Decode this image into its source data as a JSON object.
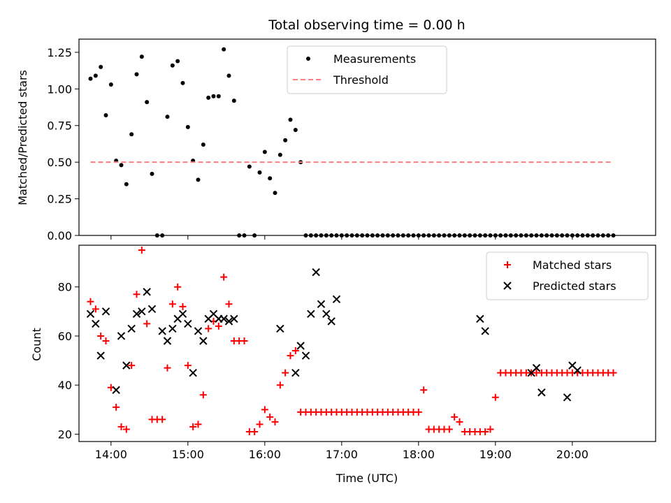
{
  "chart_data": [
    {
      "type": "scatter",
      "title": "Total observing time = 0.00 h",
      "xlabel": "",
      "ylabel": "Matched/Predicted stars",
      "ylim": [
        0,
        1.34
      ],
      "yticks": [
        "0.00",
        "0.25",
        "0.50",
        "0.75",
        "1.00",
        "1.25"
      ],
      "xlim": [
        "13:35",
        "21:05"
      ],
      "xticks": [
        "14:00",
        "15:00",
        "16:00",
        "17:00",
        "18:00",
        "19:00",
        "20:00"
      ],
      "legend": "upper-center",
      "series": [
        {
          "name": "Measurements",
          "color": "#000000",
          "marker": "dot",
          "x": [
            "13:44",
            "13:48",
            "13:52",
            "13:56",
            "14:00",
            "14:04",
            "14:08",
            "14:12",
            "14:16",
            "14:20",
            "14:24",
            "14:28",
            "14:32",
            "14:36",
            "14:40",
            "14:44",
            "14:48",
            "14:52",
            "14:56",
            "15:00",
            "15:04",
            "15:08",
            "15:12",
            "15:16",
            "15:20",
            "15:24",
            "15:28",
            "15:32",
            "15:36",
            "15:40",
            "15:44",
            "15:48",
            "15:52",
            "15:56",
            "16:00",
            "16:04",
            "16:08",
            "16:12",
            "16:16",
            "16:20",
            "16:24",
            "16:28",
            "16:32",
            "16:36",
            "16:40",
            "16:44",
            "16:48",
            "16:52",
            "16:56",
            "17:00",
            "17:04",
            "17:08",
            "17:12",
            "17:16",
            "17:20",
            "17:24",
            "17:28",
            "17:32",
            "17:36",
            "17:40",
            "17:44",
            "17:48",
            "17:52",
            "17:56",
            "18:00",
            "18:04",
            "18:08",
            "18:12",
            "18:16",
            "18:20",
            "18:24",
            "18:28",
            "18:32",
            "18:36",
            "18:40",
            "18:44",
            "18:48",
            "18:52",
            "18:56",
            "19:00",
            "19:04",
            "19:08",
            "19:12",
            "19:16",
            "19:20",
            "19:24",
            "19:28",
            "19:32",
            "19:36",
            "19:40",
            "19:44",
            "19:48",
            "19:52",
            "19:56",
            "20:00",
            "20:04",
            "20:08",
            "20:12",
            "20:16",
            "20:20",
            "20:24",
            "20:28",
            "20:32"
          ],
          "y": [
            1.07,
            1.09,
            1.15,
            0.82,
            1.03,
            0.51,
            0.48,
            0.35,
            0.69,
            1.1,
            1.22,
            0.91,
            0.42,
            0.0,
            0.0,
            0.81,
            1.16,
            1.19,
            1.04,
            0.74,
            0.51,
            0.38,
            0.62,
            0.94,
            0.95,
            0.95,
            1.27,
            1.09,
            0.92,
            0.0,
            0.0,
            0.47,
            0.0,
            0.43,
            0.57,
            0.39,
            0.29,
            0.55,
            0.65,
            0.79,
            0.72,
            0.5,
            0.0,
            0.0,
            0.0,
            0.0,
            0.0,
            0.0,
            0.0,
            0.0,
            0.0,
            0.0,
            0.0,
            0.0,
            0.0,
            0.0,
            0.0,
            0.0,
            0.0,
            0.0,
            0.0,
            0.0,
            0.0,
            0.0,
            0.0,
            0.0,
            0.0,
            0.0,
            0.0,
            0.0,
            0.0,
            0.0,
            0.0,
            0.0,
            0.0,
            0.0,
            0.0,
            0.0,
            0.0,
            0.0,
            0.0,
            0.0,
            0.0,
            0.0,
            0.0,
            0.0,
            0.0,
            0.0,
            0.0,
            0.0,
            0.0,
            0.0,
            0.0,
            0.0,
            0.0,
            0.0,
            0.0,
            0.0,
            0.0,
            0.0,
            0.0,
            0.0,
            0.0
          ]
        },
        {
          "name": "Threshold",
          "color": "#ff7f7f",
          "line": "dashed",
          "x": [
            "13:44",
            "20:32"
          ],
          "y": [
            0.5,
            0.5
          ]
        }
      ]
    },
    {
      "type": "scatter",
      "title": "",
      "xlabel": "Time (UTC)",
      "ylabel": "Count",
      "ylim": [
        17,
        97
      ],
      "yticks": [
        "20",
        "40",
        "60",
        "80"
      ],
      "xlim": [
        "13:35",
        "21:05"
      ],
      "xticks": [
        "14:00",
        "15:00",
        "16:00",
        "17:00",
        "18:00",
        "19:00",
        "20:00"
      ],
      "legend": "top-right",
      "series": [
        {
          "name": "Matched stars",
          "color": "#ff0000",
          "marker": "plus",
          "x": [
            "13:44",
            "13:48",
            "13:52",
            "13:56",
            "14:00",
            "14:04",
            "14:08",
            "14:12",
            "14:16",
            "14:20",
            "14:24",
            "14:28",
            "14:32",
            "14:36",
            "14:40",
            "14:44",
            "14:48",
            "14:52",
            "14:56",
            "15:00",
            "15:04",
            "15:08",
            "15:12",
            "15:16",
            "15:20",
            "15:24",
            "15:28",
            "15:32",
            "15:36",
            "15:40",
            "15:44",
            "15:48",
            "15:52",
            "15:56",
            "16:00",
            "16:04",
            "16:08",
            "16:12",
            "16:16",
            "16:20",
            "16:24",
            "16:28",
            "16:32",
            "16:36",
            "16:40",
            "16:44",
            "16:48",
            "16:52",
            "16:56",
            "17:00",
            "17:04",
            "17:08",
            "17:12",
            "17:16",
            "17:20",
            "17:24",
            "17:28",
            "17:32",
            "17:36",
            "17:40",
            "17:44",
            "17:48",
            "17:52",
            "17:56",
            "18:00",
            "18:04",
            "18:08",
            "18:12",
            "18:16",
            "18:20",
            "18:24",
            "18:28",
            "18:32",
            "18:36",
            "18:40",
            "18:44",
            "18:48",
            "18:52",
            "18:56",
            "19:00",
            "19:04",
            "19:08",
            "19:12",
            "19:16",
            "19:20",
            "19:24",
            "19:28",
            "19:32",
            "19:36",
            "19:40",
            "19:44",
            "19:48",
            "19:52",
            "19:56",
            "20:00",
            "20:04",
            "20:08",
            "20:12",
            "20:16",
            "20:20",
            "20:24",
            "20:28",
            "20:32"
          ],
          "y": [
            74,
            71,
            60,
            58,
            39,
            31,
            23,
            22,
            48,
            77,
            95,
            65,
            26,
            26,
            26,
            47,
            73,
            80,
            72,
            48,
            23,
            24,
            36,
            63,
            66,
            64,
            84,
            73,
            58,
            58,
            58,
            21,
            21,
            24,
            30,
            27,
            25,
            40,
            45,
            52,
            54,
            29,
            29,
            29,
            29,
            29,
            29,
            29,
            29,
            29,
            29,
            29,
            29,
            29,
            29,
            29,
            29,
            29,
            29,
            29,
            29,
            29,
            29,
            29,
            29,
            38,
            22,
            22,
            22,
            22,
            22,
            27,
            25,
            21,
            21,
            21,
            21,
            21,
            22,
            35,
            45,
            45,
            45,
            45,
            45,
            45,
            45,
            45,
            45,
            45,
            45,
            45,
            45,
            45,
            45,
            45,
            45,
            45,
            45,
            45,
            45,
            45,
            45
          ]
        },
        {
          "name": "Predicted stars",
          "color": "#000000",
          "marker": "x",
          "x": [
            "13:44",
            "13:48",
            "13:52",
            "13:56",
            "14:04",
            "14:08",
            "14:12",
            "14:16",
            "14:20",
            "14:24",
            "14:28",
            "14:32",
            "14:40",
            "14:44",
            "14:48",
            "14:52",
            "14:56",
            "15:00",
            "15:04",
            "15:08",
            "15:12",
            "15:16",
            "15:20",
            "15:24",
            "15:28",
            "15:32",
            "15:36",
            "16:12",
            "16:24",
            "16:28",
            "16:32",
            "16:36",
            "16:40",
            "16:44",
            "16:48",
            "16:52",
            "16:56",
            "18:48",
            "18:52",
            "19:28",
            "19:32",
            "19:36",
            "19:56",
            "20:00",
            "20:04"
          ],
          "y": [
            69,
            65,
            52,
            70,
            38,
            60,
            48,
            63,
            69,
            70,
            78,
            71,
            62,
            58,
            63,
            67,
            69,
            65,
            45,
            62,
            58,
            67,
            69,
            67,
            67,
            66,
            67,
            63,
            45,
            56,
            52,
            69,
            86,
            73,
            69,
            66,
            75,
            67,
            62,
            45,
            47,
            37,
            35,
            48,
            46
          ]
        }
      ]
    }
  ]
}
